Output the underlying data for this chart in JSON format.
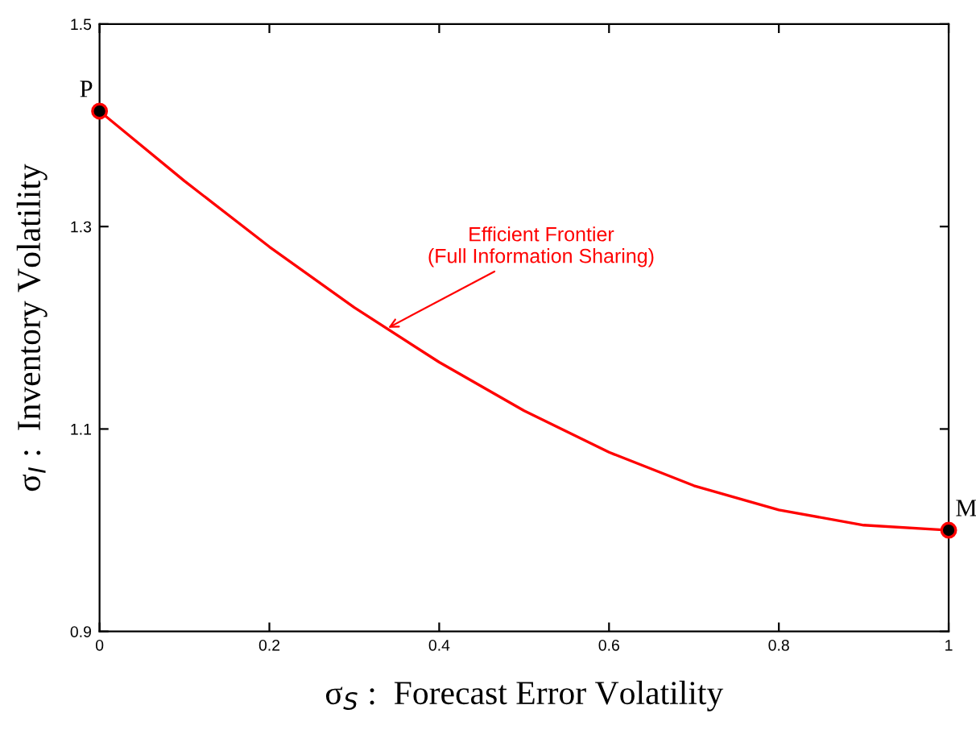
{
  "chart_data": {
    "type": "line",
    "xlabel": "σ$_{S}$ :  Forecast Error Volatility",
    "ylabel": "σ$_{I}$ :  Inventory Volatility",
    "xlim": [
      0,
      1
    ],
    "ylim": [
      0.9,
      1.5
    ],
    "xticks": [
      0,
      0.2,
      0.4,
      0.6,
      0.8,
      1
    ],
    "yticks": [
      0.9,
      1.1,
      1.3,
      1.5
    ],
    "grid": false,
    "legend": false,
    "series": [
      {
        "color": "#ff0000",
        "marker": "none",
        "x": [
          0,
          0.1,
          0.2,
          0.3,
          0.4,
          0.5,
          0.6,
          0.7,
          0.8,
          0.9,
          1
        ],
        "values": [
          1.414,
          1.345,
          1.28,
          1.22,
          1.166,
          1.118,
          1.077,
          1.044,
          1.02,
          1.005,
          1.0
        ]
      },
      {
        "type": "scatter",
        "color": "#000000",
        "marker": "circle",
        "x": [
          0,
          1
        ],
        "values": [
          1.414,
          1.0
        ]
      }
    ],
    "annotations": [
      {
        "text": "Efficient Frontier\n(Full Information Sharing)",
        "x": 0.34,
        "y": 1.2
      },
      {
        "text": "P",
        "x": 0,
        "y": 1.414
      },
      {
        "text": "M",
        "x": 1,
        "y": 1.0
      }
    ]
  }
}
